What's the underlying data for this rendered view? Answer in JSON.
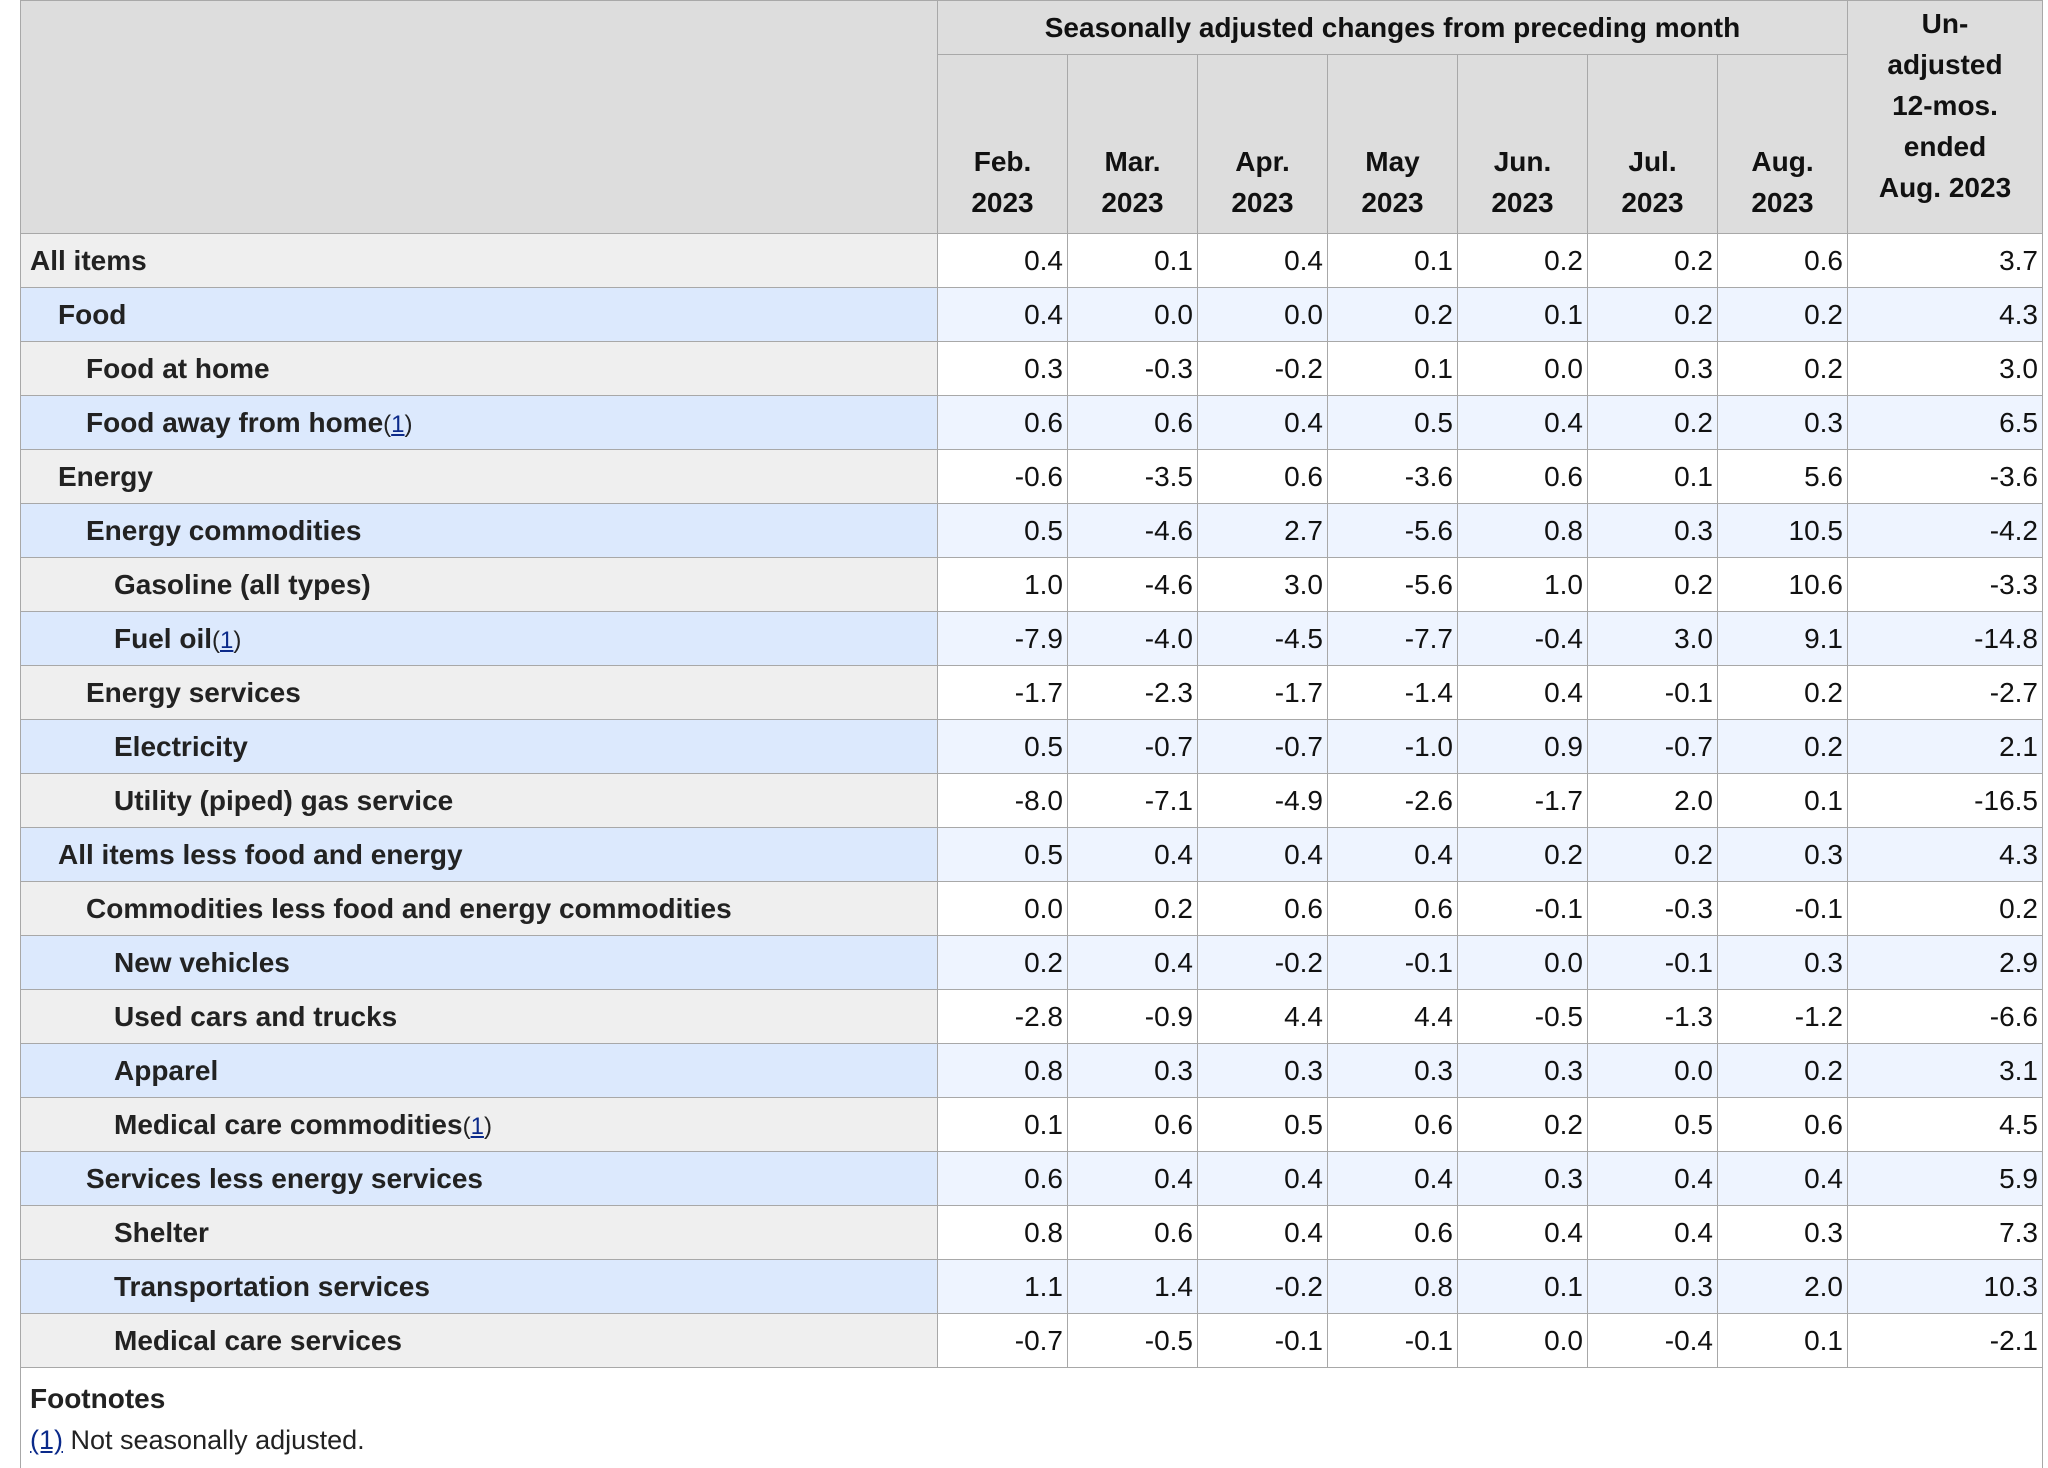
{
  "header": {
    "group_label": "Seasonally adjusted changes from preceding month",
    "unadjusted_label_lines": [
      "Un-",
      "adjusted",
      "12-mos.",
      "ended",
      "Aug. 2023"
    ],
    "months": [
      {
        "line1": "Feb.",
        "line2": "2023"
      },
      {
        "line1": "Mar.",
        "line2": "2023"
      },
      {
        "line1": "Apr.",
        "line2": "2023"
      },
      {
        "line1": "May",
        "line2": "2023"
      },
      {
        "line1": "Jun.",
        "line2": "2023"
      },
      {
        "line1": "Jul.",
        "line2": "2023"
      },
      {
        "line1": "Aug.",
        "line2": "2023"
      }
    ]
  },
  "rows": [
    {
      "label": "All items",
      "level": 0,
      "footnote": "",
      "values": [
        "0.4",
        "0.1",
        "0.4",
        "0.1",
        "0.2",
        "0.2",
        "0.6",
        "3.7"
      ]
    },
    {
      "label": "Food",
      "level": 1,
      "footnote": "",
      "values": [
        "0.4",
        "0.0",
        "0.0",
        "0.2",
        "0.1",
        "0.2",
        "0.2",
        "4.3"
      ]
    },
    {
      "label": "Food at home",
      "level": 2,
      "footnote": "",
      "values": [
        "0.3",
        "-0.3",
        "-0.2",
        "0.1",
        "0.0",
        "0.3",
        "0.2",
        "3.0"
      ]
    },
    {
      "label": "Food away from home",
      "level": 2,
      "footnote": "1",
      "values": [
        "0.6",
        "0.6",
        "0.4",
        "0.5",
        "0.4",
        "0.2",
        "0.3",
        "6.5"
      ]
    },
    {
      "label": "Energy",
      "level": 1,
      "footnote": "",
      "values": [
        "-0.6",
        "-3.5",
        "0.6",
        "-3.6",
        "0.6",
        "0.1",
        "5.6",
        "-3.6"
      ]
    },
    {
      "label": "Energy commodities",
      "level": 2,
      "footnote": "",
      "values": [
        "0.5",
        "-4.6",
        "2.7",
        "-5.6",
        "0.8",
        "0.3",
        "10.5",
        "-4.2"
      ]
    },
    {
      "label": "Gasoline (all types)",
      "level": 3,
      "footnote": "",
      "values": [
        "1.0",
        "-4.6",
        "3.0",
        "-5.6",
        "1.0",
        "0.2",
        "10.6",
        "-3.3"
      ]
    },
    {
      "label": "Fuel oil",
      "level": 3,
      "footnote": "1",
      "values": [
        "-7.9",
        "-4.0",
        "-4.5",
        "-7.7",
        "-0.4",
        "3.0",
        "9.1",
        "-14.8"
      ]
    },
    {
      "label": "Energy services",
      "level": 2,
      "footnote": "",
      "values": [
        "-1.7",
        "-2.3",
        "-1.7",
        "-1.4",
        "0.4",
        "-0.1",
        "0.2",
        "-2.7"
      ]
    },
    {
      "label": "Electricity",
      "level": 3,
      "footnote": "",
      "values": [
        "0.5",
        "-0.7",
        "-0.7",
        "-1.0",
        "0.9",
        "-0.7",
        "0.2",
        "2.1"
      ]
    },
    {
      "label": "Utility (piped) gas service",
      "level": 3,
      "footnote": "",
      "values": [
        "-8.0",
        "-7.1",
        "-4.9",
        "-2.6",
        "-1.7",
        "2.0",
        "0.1",
        "-16.5"
      ]
    },
    {
      "label": "All items less food and energy",
      "level": 1,
      "footnote": "",
      "values": [
        "0.5",
        "0.4",
        "0.4",
        "0.4",
        "0.2",
        "0.2",
        "0.3",
        "4.3"
      ]
    },
    {
      "label": "Commodities less food and energy commodities",
      "level": 2,
      "footnote": "",
      "values": [
        "0.0",
        "0.2",
        "0.6",
        "0.6",
        "-0.1",
        "-0.3",
        "-0.1",
        "0.2"
      ]
    },
    {
      "label": "New vehicles",
      "level": 3,
      "footnote": "",
      "values": [
        "0.2",
        "0.4",
        "-0.2",
        "-0.1",
        "0.0",
        "-0.1",
        "0.3",
        "2.9"
      ]
    },
    {
      "label": "Used cars and trucks",
      "level": 3,
      "footnote": "",
      "values": [
        "-2.8",
        "-0.9",
        "4.4",
        "4.4",
        "-0.5",
        "-1.3",
        "-1.2",
        "-6.6"
      ]
    },
    {
      "label": "Apparel",
      "level": 3,
      "footnote": "",
      "values": [
        "0.8",
        "0.3",
        "0.3",
        "0.3",
        "0.3",
        "0.0",
        "0.2",
        "3.1"
      ]
    },
    {
      "label": "Medical care commodities",
      "level": 3,
      "footnote": "1",
      "values": [
        "0.1",
        "0.6",
        "0.5",
        "0.6",
        "0.2",
        "0.5",
        "0.6",
        "4.5"
      ]
    },
    {
      "label": "Services less energy services",
      "level": 2,
      "footnote": "",
      "values": [
        "0.6",
        "0.4",
        "0.4",
        "0.4",
        "0.3",
        "0.4",
        "0.4",
        "5.9"
      ]
    },
    {
      "label": "Shelter",
      "level": 3,
      "footnote": "",
      "values": [
        "0.8",
        "0.6",
        "0.4",
        "0.6",
        "0.4",
        "0.4",
        "0.3",
        "7.3"
      ]
    },
    {
      "label": "Transportation services",
      "level": 3,
      "footnote": "",
      "values": [
        "1.1",
        "1.4",
        "-0.2",
        "0.8",
        "0.1",
        "0.3",
        "2.0",
        "10.3"
      ]
    },
    {
      "label": "Medical care services",
      "level": 3,
      "footnote": "",
      "values": [
        "-0.7",
        "-0.5",
        "-0.1",
        "-0.1",
        "0.0",
        "-0.4",
        "0.1",
        "-2.1"
      ]
    }
  ],
  "footnotes": {
    "title": "Footnotes",
    "items": [
      {
        "marker": "(1)",
        "text": " Not seasonally adjusted."
      }
    ]
  }
}
